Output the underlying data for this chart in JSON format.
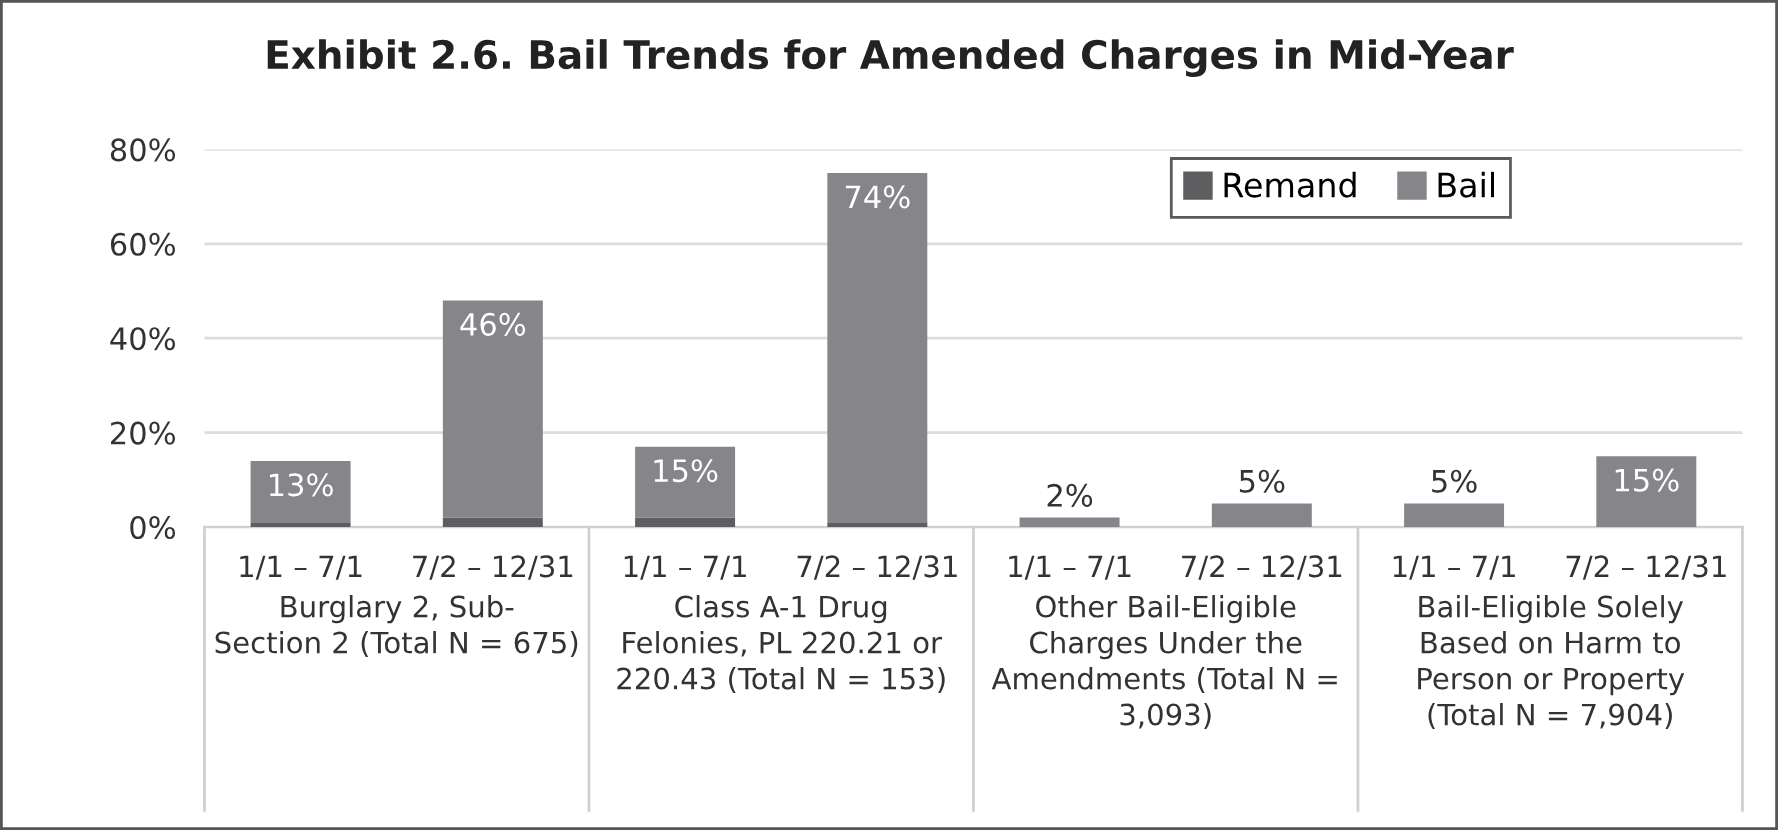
{
  "chart_data": {
    "type": "bar",
    "title": "Exhibit 2.6. Bail Trends for Amended Charges in Mid-Year",
    "categories": [
      "1/1 – 7/1",
      "7/2 – 12/31",
      "1/1 – 7/1",
      "7/2 – 12/31",
      "1/1 – 7/1",
      "7/2 – 12/31",
      "1/1 – 7/1",
      "7/2 – 12/31"
    ],
    "series": [
      {
        "name": "Remand",
        "color": "#5e5e60",
        "values": [
          1,
          2,
          2,
          1,
          0,
          0,
          0,
          0
        ]
      },
      {
        "name": "Bail",
        "color": "#86868a",
        "values": [
          13,
          46,
          15,
          74,
          2,
          5,
          5,
          15
        ],
        "value_labels": [
          "13%",
          "46%",
          "15%",
          "74%",
          "2%",
          "5%",
          "5%",
          "15%"
        ]
      }
    ],
    "stacked": true,
    "annotations": [
      "Burglary 2, Sub-\nSection 2 (Total N = 675)",
      "Class A-1 Drug\nFelonies, PL 220.21 or\n220.43 (Total N = 153)",
      "Other Bail-Eligible\nCharges Under the\nAmendments (Total N =\n3,093)",
      "Bail-Eligible Solely\nBased on Harm to\nPerson or Property\n(Total N = 7,904)"
    ],
    "ylim": [
      0,
      80
    ],
    "yticks": [
      {
        "value": 0,
        "label": "0%"
      },
      {
        "value": 20,
        "label": "20%"
      },
      {
        "value": 40,
        "label": "40%"
      },
      {
        "value": 60,
        "label": "60%"
      },
      {
        "value": 80,
        "label": "80%"
      }
    ],
    "grid": "y",
    "legend": "top right"
  }
}
